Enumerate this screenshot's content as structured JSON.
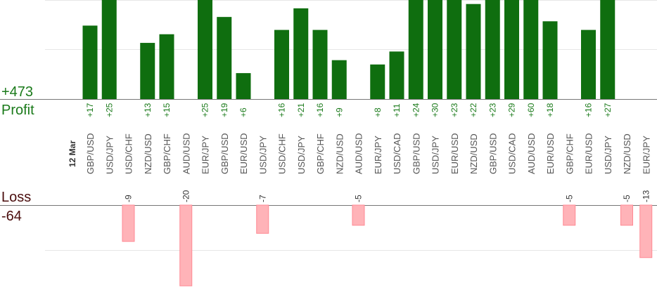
{
  "chart_data": {
    "type": "bar",
    "date_label": "12 Mar",
    "profit_label": "Profit",
    "profit_total": "+473",
    "loss_label": "Loss",
    "loss_total": "-64",
    "categories": [
      "GBP/USD",
      "USD/JPY",
      "USD/CHF",
      "NZD/USD",
      "GBP/CHF",
      "AUD/USD",
      "EUR/JPY",
      "GBP/USD",
      "EUR/USD",
      "USD/JPY",
      "USD/CHF",
      "USD/JPY",
      "GBP/CHF",
      "NZD/USD",
      "AUD/USD",
      "EUR/JPY",
      "USD/CAD",
      "GBP/USD",
      "USD/JPY",
      "EUR/USD",
      "NZD/USD",
      "GBP/USD",
      "USD/CAD",
      "AUD/USD",
      "EUR/USD",
      "GBP/CHF",
      "EUR/USD",
      "USD/JPY",
      "NZD/USD",
      "EUR/JPY"
    ],
    "values": [
      17,
      25,
      -9,
      13,
      15,
      -20,
      25,
      19,
      6,
      -7,
      16,
      21,
      16,
      9,
      -5,
      8,
      11,
      24,
      30,
      23,
      22,
      23,
      29,
      60,
      18,
      -5,
      16,
      27,
      -5,
      -13
    ],
    "colors": {
      "profit": "#0f6e0f",
      "profit_text": "#1a7a1a",
      "loss": "#ffb3b8",
      "loss_text": "#333333",
      "total_profit_text": "#1a7a1a",
      "total_loss_text": "#4a0d0d",
      "grid": "#e6e6e6",
      "axis": "#777777"
    }
  }
}
